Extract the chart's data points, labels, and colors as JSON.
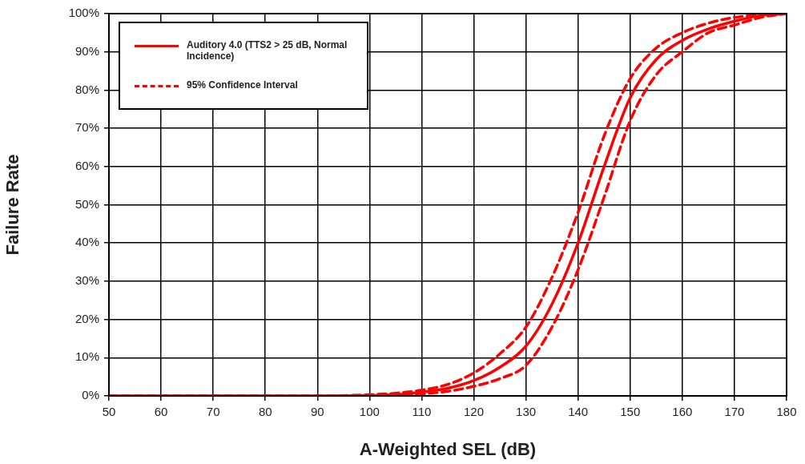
{
  "chart_data": {
    "type": "line",
    "xlabel": "A-Weighted SEL (dB)",
    "ylabel": "Failure Rate",
    "x": [
      50,
      60,
      70,
      80,
      90,
      100,
      105,
      110,
      115,
      120,
      125,
      130,
      135,
      140,
      145,
      150,
      155,
      160,
      165,
      170,
      175,
      180
    ],
    "series": [
      {
        "name": "Auditory 4.0 (TTS2 > 25 dB, Normal Incidence)",
        "color": "#ff0000",
        "line_style": "solid",
        "values": [
          0,
          0,
          0,
          0,
          0,
          0.1,
          0.3,
          1,
          2,
          4,
          7.5,
          13,
          24,
          40,
          60,
          78,
          88,
          93,
          96,
          98,
          99.5,
          100
        ]
      },
      {
        "name": "95% Confidence Interval",
        "color": "#ff0000",
        "line_style": "dashed",
        "values": [
          0,
          0,
          0,
          0,
          0,
          0.3,
          0.7,
          1.5,
          3,
          6,
          11,
          18,
          31,
          48,
          68,
          83,
          91,
          95,
          97.5,
          99,
          99.7,
          100
        ]
      },
      {
        "color": "#ff0000",
        "line_style": "dashed",
        "values": [
          0,
          0,
          0,
          0,
          0,
          0,
          0,
          0.5,
          1.2,
          2.5,
          4.5,
          8,
          18,
          33,
          52,
          72,
          84,
          90,
          95,
          97,
          99,
          100
        ]
      }
    ],
    "xlim": [
      50,
      180
    ],
    "xticks": [
      50,
      60,
      70,
      80,
      90,
      100,
      110,
      120,
      130,
      140,
      150,
      160,
      170,
      180
    ],
    "ylim": [
      0,
      100
    ],
    "yticks": [
      {
        "value": 0,
        "label": "0%"
      },
      {
        "value": 10,
        "label": "10%"
      },
      {
        "value": 20,
        "label": "20%"
      },
      {
        "value": 30,
        "label": "30%"
      },
      {
        "value": 40,
        "label": "40%"
      },
      {
        "value": 50,
        "label": "50%"
      },
      {
        "value": 60,
        "label": "60%"
      },
      {
        "value": 70,
        "label": "70%"
      },
      {
        "value": 80,
        "label": "80%"
      },
      {
        "value": 90,
        "label": "90%"
      },
      {
        "value": 100,
        "label": "100%"
      }
    ],
    "grid": true,
    "legend": "top left",
    "marker": "none"
  }
}
